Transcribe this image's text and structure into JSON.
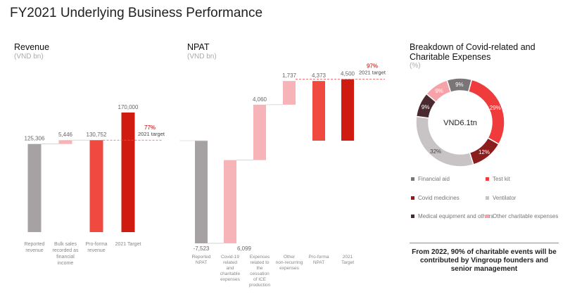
{
  "page": {
    "title": "FY2021 Underlying Business Performance"
  },
  "revenue": {
    "title": "Revenue",
    "unit": "(VND bn)",
    "target_pct": "77%",
    "target_label": "2021 target",
    "chart_data": {
      "type": "bar",
      "categories": [
        "Reported revenue",
        "Bulk sales recorded as financial income",
        "Pro-forma revenue",
        "2021 Target"
      ],
      "values": [
        125306,
        5446,
        130752,
        170000
      ],
      "value_labels": [
        "125,306",
        "5,446",
        "130,752",
        "170,000"
      ]
    }
  },
  "npat": {
    "title": "NPAT",
    "unit": "(VND bn)",
    "target_pct": "97%",
    "target_label": "2021 target",
    "chart_data": {
      "type": "bar",
      "categories": [
        "Reported NPAT",
        "Covid-19 related and charitable expenses",
        "Expenses related to the cessation of ICE production",
        "Other non-recurring expenses",
        "Pro-forma NPAT",
        "2021 Target"
      ],
      "values": [
        -7523,
        6099,
        4060,
        1737,
        4373,
        4500
      ],
      "value_labels": [
        "-7,523",
        "6,099",
        "4,060",
        "1,737",
        "4,373",
        "4,500"
      ]
    }
  },
  "breakdown": {
    "title": "Breakdown of Covid-related and Charitable Expenses",
    "unit": "(%)",
    "center_label": "VND6.1tn",
    "chart_data": {
      "type": "pie",
      "labels": [
        "Test kit",
        "Covid medicines",
        "Ventilator",
        "Medical equipment and others",
        "Other charitable expenses",
        "Financial aid"
      ],
      "values": [
        29,
        12,
        32,
        9,
        9,
        9
      ],
      "value_labels": [
        "29%",
        "12%",
        "32%",
        "9%",
        "9%",
        "9%"
      ],
      "colors": [
        "#ef3b3b",
        "#8b1d1d",
        "#c8c4c6",
        "#4a2a2e",
        "#f5a3a8",
        "#7a7577"
      ]
    },
    "legend": [
      {
        "label": "Financial aid",
        "color": "#7a7577"
      },
      {
        "label": "Test kit",
        "color": "#ef3b3b"
      },
      {
        "label": "Covid medicines",
        "color": "#8b1d1d"
      },
      {
        "label": "Ventilator",
        "color": "#c8c4c6"
      },
      {
        "label": "Medical equipment and others",
        "color": "#4a2a2e"
      },
      {
        "label": "Other charitable expenses",
        "color": "#f5a3a8"
      }
    ]
  },
  "note": "From 2022, 90% of charitable events will be contributed by Vingroup founders and senior management",
  "colors": {
    "grey": "#a6a2a4",
    "light_red": "#f7b4b8",
    "red": "#f04a40",
    "dark_red": "#d01c10",
    "dash": "#e05a5a"
  }
}
